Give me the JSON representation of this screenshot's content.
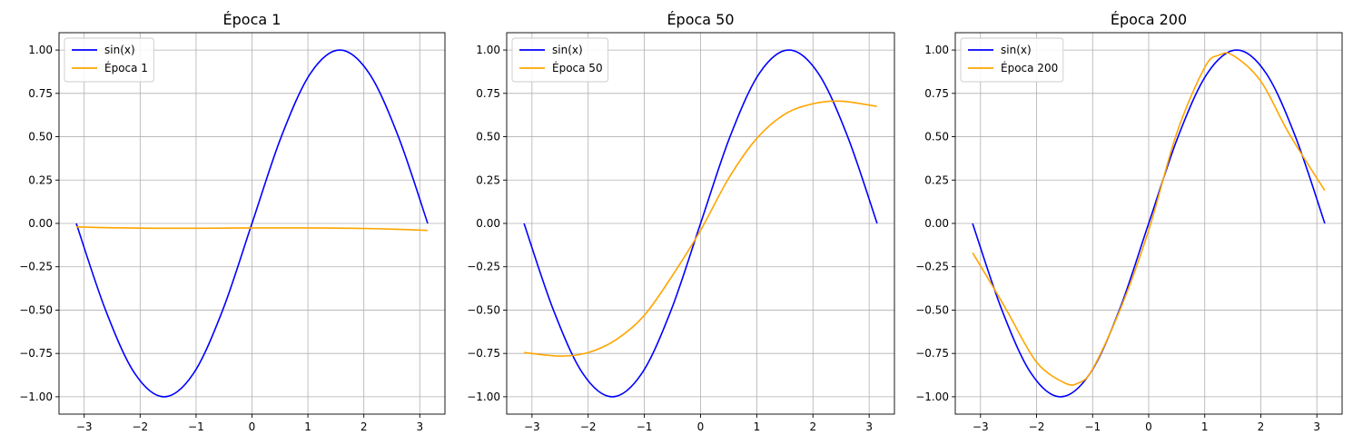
{
  "chart_data": [
    {
      "type": "line",
      "title": "Época 1",
      "xlabel": "",
      "ylabel": "",
      "xlim": [
        -3.45,
        3.45
      ],
      "ylim": [
        -1.1,
        1.1
      ],
      "xticks": [
        -3,
        -2,
        -1,
        0,
        1,
        2,
        3
      ],
      "yticks": [
        -1.0,
        -0.75,
        -0.5,
        -0.25,
        0.0,
        0.25,
        0.5,
        0.75,
        1.0
      ],
      "xtick_labels": [
        "−3",
        "−2",
        "−1",
        "0",
        "1",
        "2",
        "3"
      ],
      "ytick_labels": [
        "−1.00",
        "−0.75",
        "−0.50",
        "−0.25",
        "0.00",
        "0.25",
        "0.50",
        "0.75",
        "1.00"
      ],
      "grid": true,
      "legend_position": "top-left",
      "series": [
        {
          "name": "sin(x)",
          "color": "#0000ff",
          "x": [
            -3.1416,
            -2.618,
            -2.0944,
            -1.5708,
            -1.0472,
            -0.5236,
            0.0,
            0.5236,
            1.0472,
            1.5708,
            2.0944,
            2.618,
            3.1416
          ],
          "y": [
            0.0,
            -0.5,
            -0.866,
            -1.0,
            -0.866,
            -0.5,
            0.0,
            0.5,
            0.866,
            1.0,
            0.866,
            0.5,
            0.0
          ]
        },
        {
          "name": "Época 1",
          "color": "#ffa500",
          "x": [
            -3.14,
            -2.5,
            -2.0,
            -1.5,
            -1.0,
            -0.5,
            0.0,
            0.5,
            1.0,
            1.5,
            2.0,
            2.5,
            3.14
          ],
          "y": [
            -0.02,
            -0.025,
            -0.027,
            -0.028,
            -0.028,
            -0.027,
            -0.026,
            -0.026,
            -0.026,
            -0.027,
            -0.029,
            -0.033,
            -0.04
          ]
        }
      ]
    },
    {
      "type": "line",
      "title": "Época 50",
      "xlabel": "",
      "ylabel": "",
      "xlim": [
        -3.45,
        3.45
      ],
      "ylim": [
        -1.1,
        1.1
      ],
      "xticks": [
        -3,
        -2,
        -1,
        0,
        1,
        2,
        3
      ],
      "yticks": [
        -1.0,
        -0.75,
        -0.5,
        -0.25,
        0.0,
        0.25,
        0.5,
        0.75,
        1.0
      ],
      "xtick_labels": [
        "−3",
        "−2",
        "−1",
        "0",
        "1",
        "2",
        "3"
      ],
      "ytick_labels": [
        "−1.00",
        "−0.75",
        "−0.50",
        "−0.25",
        "0.00",
        "0.25",
        "0.50",
        "0.75",
        "1.00"
      ],
      "grid": true,
      "legend_position": "top-left",
      "series": [
        {
          "name": "sin(x)",
          "color": "#0000ff",
          "x": [
            -3.1416,
            -2.618,
            -2.0944,
            -1.5708,
            -1.0472,
            -0.5236,
            0.0,
            0.5236,
            1.0472,
            1.5708,
            2.0944,
            2.618,
            3.1416
          ],
          "y": [
            0.0,
            -0.5,
            -0.866,
            -1.0,
            -0.866,
            -0.5,
            0.0,
            0.5,
            0.866,
            1.0,
            0.866,
            0.5,
            0.0
          ]
        },
        {
          "name": "Época 50",
          "color": "#ffa500",
          "x": [
            -3.14,
            -2.5,
            -2.0,
            -1.5,
            -1.0,
            -0.5,
            0.0,
            0.5,
            1.0,
            1.5,
            2.0,
            2.5,
            3.14
          ],
          "y": [
            -0.745,
            -0.765,
            -0.745,
            -0.67,
            -0.53,
            -0.3,
            -0.04,
            0.26,
            0.49,
            0.63,
            0.69,
            0.705,
            0.675
          ]
        }
      ]
    },
    {
      "type": "line",
      "title": "Época 200",
      "xlabel": "",
      "ylabel": "",
      "xlim": [
        -3.45,
        3.45
      ],
      "ylim": [
        -1.1,
        1.1
      ],
      "xticks": [
        -3,
        -2,
        -1,
        0,
        1,
        2,
        3
      ],
      "yticks": [
        -1.0,
        -0.75,
        -0.5,
        -0.25,
        0.0,
        0.25,
        0.5,
        0.75,
        1.0
      ],
      "xtick_labels": [
        "−3",
        "−2",
        "−1",
        "0",
        "1",
        "2",
        "3"
      ],
      "ytick_labels": [
        "−1.00",
        "−0.75",
        "−0.50",
        "−0.25",
        "0.00",
        "0.25",
        "0.50",
        "0.75",
        "1.00"
      ],
      "grid": true,
      "legend_position": "top-left",
      "series": [
        {
          "name": "sin(x)",
          "color": "#0000ff",
          "x": [
            -3.1416,
            -2.618,
            -2.0944,
            -1.5708,
            -1.0472,
            -0.5236,
            0.0,
            0.5236,
            1.0472,
            1.5708,
            2.0944,
            2.618,
            3.1416
          ],
          "y": [
            0.0,
            -0.5,
            -0.866,
            -1.0,
            -0.866,
            -0.5,
            0.0,
            0.5,
            0.866,
            1.0,
            0.866,
            0.5,
            0.0
          ]
        },
        {
          "name": "Época 200",
          "color": "#ffa500",
          "x": [
            -3.14,
            -2.75,
            -2.5,
            -2.0,
            -1.5,
            -1.25,
            -1.0,
            -0.5,
            0.0,
            0.5,
            1.0,
            1.25,
            1.5,
            2.0,
            2.5,
            3.14
          ],
          "y": [
            -0.17,
            -0.38,
            -0.52,
            -0.8,
            -0.92,
            -0.92,
            -0.84,
            -0.49,
            -0.04,
            0.52,
            0.9,
            0.97,
            0.97,
            0.82,
            0.52,
            0.19
          ]
        }
      ]
    }
  ]
}
